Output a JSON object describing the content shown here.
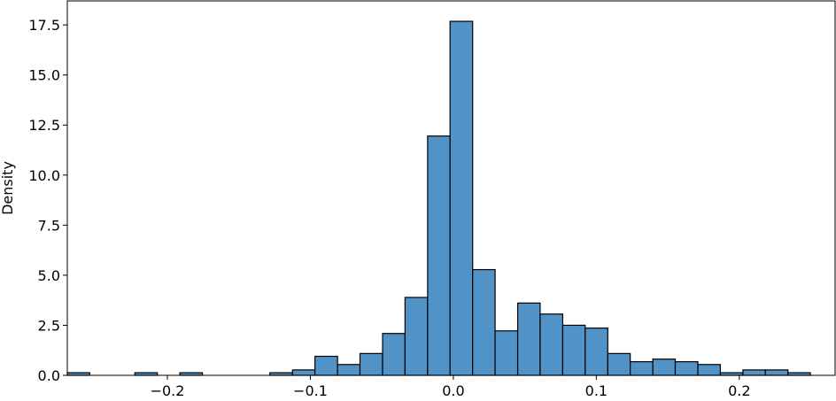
{
  "chart_data": {
    "type": "histogram",
    "title": "",
    "xlabel": "",
    "ylabel": "Density",
    "xlim": [
      -0.27,
      0.267
    ],
    "ylim": [
      0,
      18.7
    ],
    "x_ticks": [
      -0.2,
      -0.1,
      0.0,
      0.1,
      0.2
    ],
    "x_tick_labels": [
      "−0.2",
      "−0.1",
      "0.0",
      "0.1",
      "0.2"
    ],
    "y_ticks": [
      0,
      2.5,
      5,
      7.5,
      10,
      12.5,
      15,
      17.5
    ],
    "y_tick_labels": [
      "0.0",
      "2.5",
      "5.0",
      "7.5",
      "10.0",
      "12.5",
      "15.0",
      "17.5"
    ],
    "grid": false,
    "bar_color": "#5293c7",
    "edge_color": "#000000",
    "bin_width": 0.01575,
    "bins": [
      {
        "x0": -0.27,
        "x1": -0.2543,
        "density": 0.13
      },
      {
        "x0": -0.2543,
        "x1": -0.2385,
        "density": 0.0
      },
      {
        "x0": -0.2385,
        "x1": -0.2228,
        "density": 0.0
      },
      {
        "x0": -0.2228,
        "x1": -0.207,
        "density": 0.13
      },
      {
        "x0": -0.207,
        "x1": -0.1913,
        "density": 0.0
      },
      {
        "x0": -0.1913,
        "x1": -0.1755,
        "density": 0.13
      },
      {
        "x0": -0.1755,
        "x1": -0.1598,
        "density": 0.0
      },
      {
        "x0": -0.1598,
        "x1": -0.144,
        "density": 0.0
      },
      {
        "x0": -0.144,
        "x1": -0.1283,
        "density": 0.0
      },
      {
        "x0": -0.1283,
        "x1": -0.1125,
        "density": 0.13
      },
      {
        "x0": -0.1125,
        "x1": -0.0968,
        "density": 0.27
      },
      {
        "x0": -0.0968,
        "x1": -0.081,
        "density": 0.95
      },
      {
        "x0": -0.081,
        "x1": -0.0653,
        "density": 0.54
      },
      {
        "x0": -0.0653,
        "x1": -0.0495,
        "density": 1.09
      },
      {
        "x0": -0.0495,
        "x1": -0.0338,
        "density": 2.09
      },
      {
        "x0": -0.0338,
        "x1": -0.018,
        "density": 3.89
      },
      {
        "x0": -0.018,
        "x1": -0.0023,
        "density": 11.95
      },
      {
        "x0": -0.0023,
        "x1": 0.0135,
        "density": 17.68
      },
      {
        "x0": 0.0135,
        "x1": 0.0292,
        "density": 5.28
      },
      {
        "x0": 0.0292,
        "x1": 0.045,
        "density": 2.22
      },
      {
        "x0": 0.045,
        "x1": 0.0607,
        "density": 3.61
      },
      {
        "x0": 0.0607,
        "x1": 0.0765,
        "density": 3.06
      },
      {
        "x0": 0.0765,
        "x1": 0.0922,
        "density": 2.5
      },
      {
        "x0": 0.0922,
        "x1": 0.108,
        "density": 2.36
      },
      {
        "x0": 0.108,
        "x1": 0.1237,
        "density": 1.09
      },
      {
        "x0": 0.1237,
        "x1": 0.1395,
        "density": 0.68
      },
      {
        "x0": 0.1395,
        "x1": 0.1552,
        "density": 0.81
      },
      {
        "x0": 0.1552,
        "x1": 0.171,
        "density": 0.68
      },
      {
        "x0": 0.171,
        "x1": 0.1867,
        "density": 0.54
      },
      {
        "x0": 0.1867,
        "x1": 0.2025,
        "density": 0.13
      },
      {
        "x0": 0.2025,
        "x1": 0.2182,
        "density": 0.27
      },
      {
        "x0": 0.2182,
        "x1": 0.234,
        "density": 0.27
      },
      {
        "x0": 0.234,
        "x1": 0.2497,
        "density": 0.13
      }
    ]
  }
}
